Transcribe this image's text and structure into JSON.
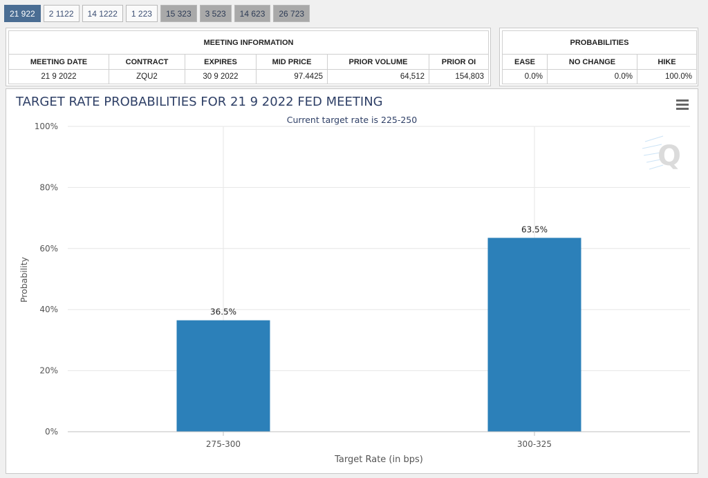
{
  "tabs": [
    {
      "label": "21 922",
      "style": "active"
    },
    {
      "label": "2 1122",
      "style": "light"
    },
    {
      "label": "14 1222",
      "style": "light"
    },
    {
      "label": "1 223",
      "style": "light"
    },
    {
      "label": "15 323",
      "style": "gray"
    },
    {
      "label": "3 523",
      "style": "gray"
    },
    {
      "label": "14 623",
      "style": "gray"
    },
    {
      "label": "26 723",
      "style": "gray"
    }
  ],
  "meeting_info": {
    "title": "MEETING INFORMATION",
    "headers": [
      "MEETING DATE",
      "CONTRACT",
      "EXPIRES",
      "MID PRICE",
      "PRIOR VOLUME",
      "PRIOR OI"
    ],
    "row": [
      "21 9 2022",
      "ZQU2",
      "30 9 2022",
      "97.4425",
      "64,512",
      "154,803"
    ]
  },
  "probabilities": {
    "title": "PROBABILITIES",
    "headers": [
      "EASE",
      "NO CHANGE",
      "HIKE"
    ],
    "row": [
      "0.0%",
      "0.0%",
      "100.0%"
    ]
  },
  "menu_icon": "hamburger-menu-icon",
  "watermark_icon": "q-logo-icon",
  "colors": {
    "bar": "#2c80b9",
    "title": "#2e3f66",
    "grid": "#e6e6e6"
  },
  "chart_data": {
    "type": "bar",
    "title": "TARGET RATE PROBABILITIES FOR 21 9 2022 FED MEETING",
    "subtitle": "Current target rate is 225-250",
    "xlabel": "Target Rate (in bps)",
    "ylabel": "Probability",
    "categories": [
      "275-300",
      "300-325"
    ],
    "values": [
      36.5,
      63.5
    ],
    "data_labels": [
      "36.5%",
      "63.5%"
    ],
    "ylim": [
      0,
      100
    ],
    "yticks": [
      0,
      20,
      40,
      60,
      80,
      100
    ],
    "ytick_labels": [
      "0%",
      "20%",
      "40%",
      "60%",
      "80%",
      "100%"
    ],
    "grid": true
  }
}
